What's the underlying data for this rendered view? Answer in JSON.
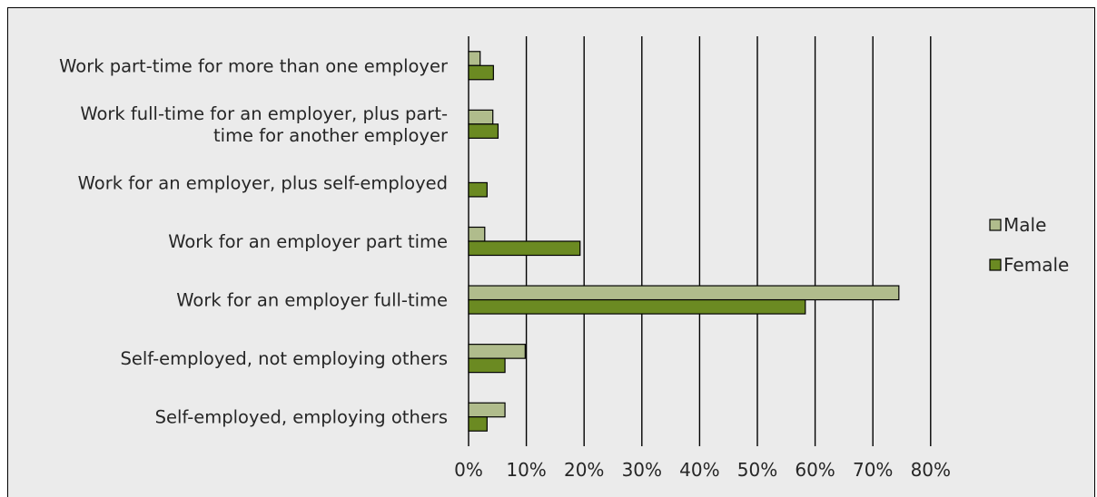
{
  "chart_data": {
    "type": "bar",
    "orientation": "horizontal",
    "title": "",
    "xlabel": "",
    "ylabel": "",
    "categories": [
      [
        "Work part-time for more than one employer"
      ],
      [
        "Work full-time for an employer, plus part-",
        "time for another employer"
      ],
      [
        "Work for an employer, plus self-employed"
      ],
      [
        "Work for an employer part time"
      ],
      [
        "Work for an employer full-time"
      ],
      [
        "Self-employed, not employing others"
      ],
      [
        "Self-employed, employing others"
      ]
    ],
    "series": [
      {
        "name": "Male",
        "color": "#b0bc8c",
        "values": [
          2.0,
          4.2,
          0,
          2.8,
          74.5,
          9.8,
          6.3
        ]
      },
      {
        "name": "Female",
        "color": "#6b8a22",
        "values": [
          4.3,
          5.1,
          3.2,
          19.3,
          58.3,
          6.3,
          3.2
        ]
      }
    ],
    "xlim": [
      0,
      80
    ],
    "xticks": [
      "0%",
      "10%",
      "20%",
      "30%",
      "40%",
      "50%",
      "60%",
      "70%",
      "80%"
    ],
    "grid": "vertical",
    "legend": "right"
  }
}
